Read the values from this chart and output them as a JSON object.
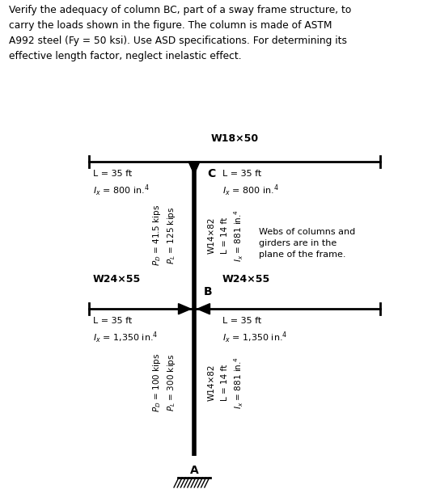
{
  "title_text": "Verify the adequacy of column BC, part of a sway frame structure, to\ncarry the loads shown in the figure. The column is made of ASTM\nA992 steel (Fy = 50 ksi). Use ASD specifications. For determining its\neffective length factor, neglect inelastic effect.",
  "fig_width": 5.39,
  "fig_height": 6.05,
  "bg_color": "#ffffff",
  "top_beam_label": "W18×50",
  "left_top_beam_L": "L = 35 ft",
  "left_top_beam_Ix": "Ix = 800 in.4",
  "right_top_beam_L": "L = 35 ft",
  "right_top_beam_Ix": "Ix = 800 in.4",
  "left_bot_beam_label": "W24×55",
  "left_bot_beam_L": "L = 35 ft",
  "left_bot_beam_Ix": "Ix = 1,350 in.4",
  "right_bot_beam_label": "W24×55",
  "right_bot_beam_L": "L = 35 ft",
  "right_bot_beam_Ix": "Ix = 1,350 in.4",
  "column_label_top": "W14×82",
  "column_label_top_L": "L = 14 ft",
  "column_label_top_Ix": "Ix = 881 in.4",
  "column_label_bot": "W14×82",
  "column_label_bot_L": "L = 14 ft",
  "column_label_bot_Ix": "Ix = 881 in.4",
  "node_C": "C",
  "node_B": "B",
  "node_A": "A",
  "upper_load_PD": "$P_D$ = 41.5 kips",
  "upper_load_PL": "$P_L$ = 125 kips",
  "lower_load_PD": "$P_D$ = 100 kips",
  "lower_load_PL": "$P_L$ = 300 kips",
  "note_text": "Webs of columns and\ngirders are in the\nplane of the frame.",
  "font_color": "#000000"
}
